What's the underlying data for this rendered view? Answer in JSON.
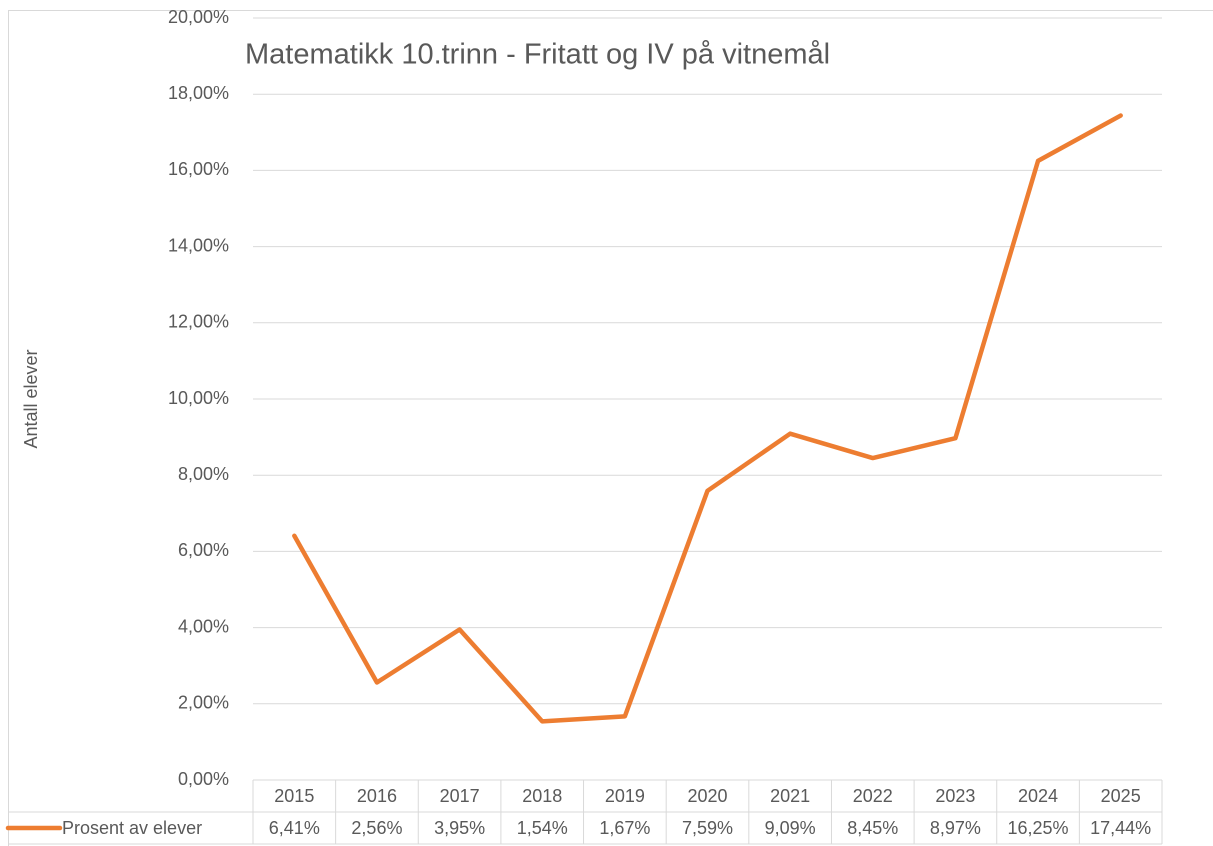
{
  "chart_data": {
    "type": "line",
    "title": "Matematikk 10.trinn - Fritatt og IV på vitnemål",
    "y_label": "Antall elever",
    "categories": [
      "2015",
      "2016",
      "2017",
      "2018",
      "2019",
      "2020",
      "2021",
      "2022",
      "2023",
      "2024",
      "2025"
    ],
    "series": [
      {
        "name": "Prosent av elever",
        "color": "#ED7D31",
        "values": [
          6.41,
          2.56,
          3.95,
          1.54,
          1.67,
          7.59,
          9.09,
          8.45,
          8.97,
          16.25,
          17.44
        ],
        "value_labels": [
          "6,41%",
          "2,56%",
          "3,95%",
          "1,54%",
          "1,67%",
          "7,59%",
          "9,09%",
          "8,45%",
          "8,97%",
          "16,25%",
          "17,44%"
        ]
      }
    ],
    "ylim": [
      0,
      20
    ],
    "yticks": [
      {
        "value": 0,
        "label": "0,00%"
      },
      {
        "value": 2,
        "label": "2,00%"
      },
      {
        "value": 4,
        "label": "4,00%"
      },
      {
        "value": 6,
        "label": "6,00%"
      },
      {
        "value": 8,
        "label": "8,00%"
      },
      {
        "value": 10,
        "label": "10,00%"
      },
      {
        "value": 12,
        "label": "12,00%"
      },
      {
        "value": 14,
        "label": "14,00%"
      },
      {
        "value": 16,
        "label": "16,00%"
      },
      {
        "value": 18,
        "label": "18,00%"
      },
      {
        "value": 20,
        "label": "20,00%"
      }
    ],
    "grid": true
  }
}
